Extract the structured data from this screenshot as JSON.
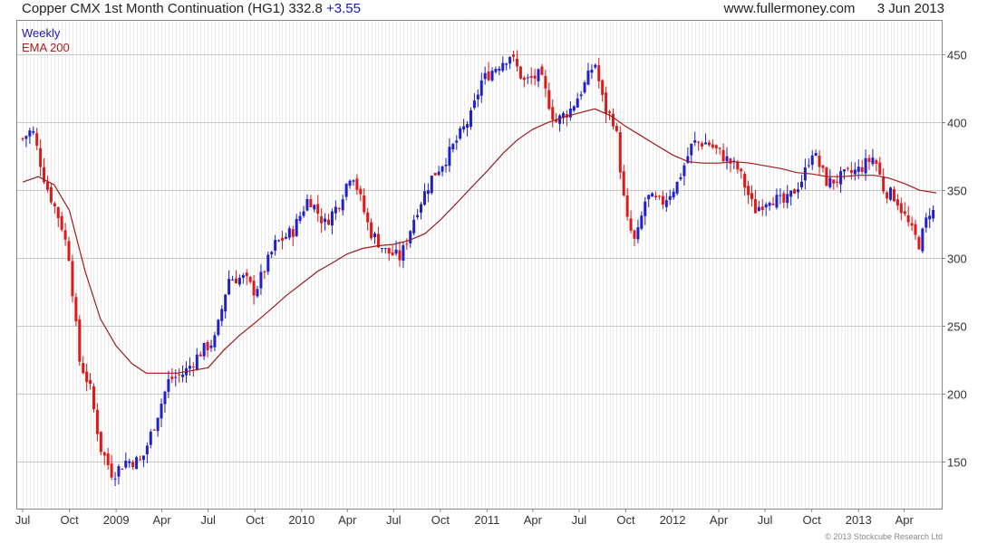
{
  "header": {
    "title": "Copper CMX 1st Month Continuation (HG1)",
    "last": "332.8",
    "change": "+3.55",
    "source": "www.fullermoney.com",
    "date": "3 Jun 2013"
  },
  "legend": {
    "period": "Weekly",
    "indicator": "EMA 200"
  },
  "copyright": "© 2013 Stockcube Research Ltd",
  "colors": {
    "up": "#2020c8",
    "down": "#e01818",
    "ema": "#9c1c1c",
    "grid": "#d8d8d8"
  },
  "chart_data": {
    "type": "candlestick",
    "interval": "weekly",
    "x_range": [
      "2008-07-01",
      "2013-06-03"
    ],
    "ylim": [
      115,
      475
    ],
    "yticks": [
      150,
      200,
      250,
      300,
      350,
      400,
      450
    ],
    "xticks": [
      {
        "label": "Jul",
        "date": "2008-07-01"
      },
      {
        "label": "Oct",
        "date": "2008-10-01"
      },
      {
        "label": "2009",
        "date": "2009-01-01"
      },
      {
        "label": "Apr",
        "date": "2009-04-01"
      },
      {
        "label": "Jul",
        "date": "2009-07-01"
      },
      {
        "label": "Oct",
        "date": "2009-10-01"
      },
      {
        "label": "2010",
        "date": "2010-01-01"
      },
      {
        "label": "Apr",
        "date": "2010-04-01"
      },
      {
        "label": "Jul",
        "date": "2010-07-01"
      },
      {
        "label": "Oct",
        "date": "2010-10-01"
      },
      {
        "label": "2011",
        "date": "2011-01-01"
      },
      {
        "label": "Apr",
        "date": "2011-04-01"
      },
      {
        "label": "Jul",
        "date": "2011-07-01"
      },
      {
        "label": "Oct",
        "date": "2011-10-01"
      },
      {
        "label": "2012",
        "date": "2012-01-01"
      },
      {
        "label": "Apr",
        "date": "2012-04-01"
      },
      {
        "label": "Jul",
        "date": "2012-07-01"
      },
      {
        "label": "Oct",
        "date": "2012-10-01"
      },
      {
        "label": "2013",
        "date": "2013-01-01"
      },
      {
        "label": "Apr",
        "date": "2013-04-01"
      }
    ],
    "price_path": [
      [
        "2008-07-01",
        388
      ],
      [
        "2008-07-20",
        395
      ],
      [
        "2008-08-15",
        355
      ],
      [
        "2008-09-15",
        325
      ],
      [
        "2008-10-01",
        300
      ],
      [
        "2008-10-20",
        225
      ],
      [
        "2008-11-10",
        205
      ],
      [
        "2008-12-01",
        160
      ],
      [
        "2008-12-25",
        140
      ],
      [
        "2009-01-20",
        150
      ],
      [
        "2009-02-20",
        150
      ],
      [
        "2009-03-15",
        175
      ],
      [
        "2009-04-15",
        210
      ],
      [
        "2009-05-15",
        215
      ],
      [
        "2009-06-15",
        230
      ],
      [
        "2009-07-15",
        240
      ],
      [
        "2009-08-10",
        285
      ],
      [
        "2009-09-10",
        285
      ],
      [
        "2009-10-01",
        275
      ],
      [
        "2009-11-10",
        310
      ],
      [
        "2009-12-15",
        320
      ],
      [
        "2010-01-15",
        345
      ],
      [
        "2010-02-15",
        325
      ],
      [
        "2010-03-15",
        340
      ],
      [
        "2010-04-10",
        365
      ],
      [
        "2010-05-15",
        320
      ],
      [
        "2010-06-15",
        305
      ],
      [
        "2010-07-15",
        300
      ],
      [
        "2010-08-15",
        335
      ],
      [
        "2010-09-15",
        360
      ],
      [
        "2010-10-15",
        375
      ],
      [
        "2010-12-01",
        405
      ],
      [
        "2010-12-20",
        430
      ],
      [
        "2011-01-15",
        440
      ],
      [
        "2011-02-15",
        450
      ],
      [
        "2011-03-15",
        430
      ],
      [
        "2011-04-15",
        435
      ],
      [
        "2011-05-15",
        400
      ],
      [
        "2011-06-15",
        410
      ],
      [
        "2011-07-15",
        430
      ],
      [
        "2011-08-01",
        445
      ],
      [
        "2011-08-20",
        410
      ],
      [
        "2011-09-10",
        400
      ],
      [
        "2011-10-01",
        330
      ],
      [
        "2011-10-20",
        310
      ],
      [
        "2011-11-10",
        345
      ],
      [
        "2011-12-10",
        340
      ],
      [
        "2012-01-10",
        355
      ],
      [
        "2012-02-10",
        385
      ],
      [
        "2012-03-10",
        385
      ],
      [
        "2012-04-10",
        375
      ],
      [
        "2012-05-10",
        365
      ],
      [
        "2012-06-10",
        335
      ],
      [
        "2012-07-10",
        345
      ],
      [
        "2012-08-10",
        340
      ],
      [
        "2012-09-15",
        360
      ],
      [
        "2012-10-01",
        380
      ],
      [
        "2012-11-01",
        355
      ],
      [
        "2012-12-01",
        360
      ],
      [
        "2013-01-01",
        365
      ],
      [
        "2013-02-01",
        375
      ],
      [
        "2013-02-20",
        350
      ],
      [
        "2013-03-15",
        345
      ],
      [
        "2013-04-15",
        320
      ],
      [
        "2013-05-01",
        310
      ],
      [
        "2013-05-20",
        335
      ],
      [
        "2013-06-03",
        332.8
      ]
    ],
    "ema_path": [
      [
        "2008-07-01",
        356
      ],
      [
        "2008-08-01",
        360
      ],
      [
        "2008-09-01",
        354
      ],
      [
        "2008-10-01",
        335
      ],
      [
        "2008-11-01",
        290
      ],
      [
        "2008-12-01",
        255
      ],
      [
        "2009-01-01",
        235
      ],
      [
        "2009-02-01",
        222
      ],
      [
        "2009-03-01",
        215
      ],
      [
        "2009-04-01",
        215
      ],
      [
        "2009-05-01",
        215
      ],
      [
        "2009-06-01",
        217
      ],
      [
        "2009-07-01",
        219
      ],
      [
        "2009-08-01",
        232
      ],
      [
        "2009-09-01",
        243
      ],
      [
        "2009-10-01",
        252
      ],
      [
        "2009-11-01",
        262
      ],
      [
        "2009-12-01",
        272
      ],
      [
        "2010-01-01",
        281
      ],
      [
        "2010-02-01",
        290
      ],
      [
        "2010-03-01",
        296
      ],
      [
        "2010-04-01",
        303
      ],
      [
        "2010-05-01",
        307
      ],
      [
        "2010-06-01",
        309
      ],
      [
        "2010-07-01",
        310
      ],
      [
        "2010-08-01",
        313
      ],
      [
        "2010-09-01",
        318
      ],
      [
        "2010-10-01",
        328
      ],
      [
        "2010-11-01",
        340
      ],
      [
        "2010-12-01",
        352
      ],
      [
        "2011-01-01",
        364
      ],
      [
        "2011-02-01",
        377
      ],
      [
        "2011-03-01",
        387
      ],
      [
        "2011-04-01",
        395
      ],
      [
        "2011-05-01",
        400
      ],
      [
        "2011-06-01",
        404
      ],
      [
        "2011-07-01",
        407
      ],
      [
        "2011-08-01",
        410
      ],
      [
        "2011-09-01",
        405
      ],
      [
        "2011-10-01",
        397
      ],
      [
        "2011-11-01",
        390
      ],
      [
        "2011-12-01",
        383
      ],
      [
        "2012-01-01",
        376
      ],
      [
        "2012-02-01",
        371
      ],
      [
        "2012-03-01",
        370
      ],
      [
        "2012-04-01",
        370
      ],
      [
        "2012-05-01",
        371
      ],
      [
        "2012-06-01",
        370
      ],
      [
        "2012-07-01",
        368
      ],
      [
        "2012-08-01",
        366
      ],
      [
        "2012-09-01",
        363
      ],
      [
        "2012-10-01",
        362
      ],
      [
        "2012-11-01",
        360
      ],
      [
        "2012-12-01",
        360
      ],
      [
        "2013-01-01",
        361
      ],
      [
        "2013-02-01",
        361
      ],
      [
        "2013-03-01",
        359
      ],
      [
        "2013-04-01",
        355
      ],
      [
        "2013-05-01",
        350
      ],
      [
        "2013-06-03",
        348
      ]
    ]
  }
}
